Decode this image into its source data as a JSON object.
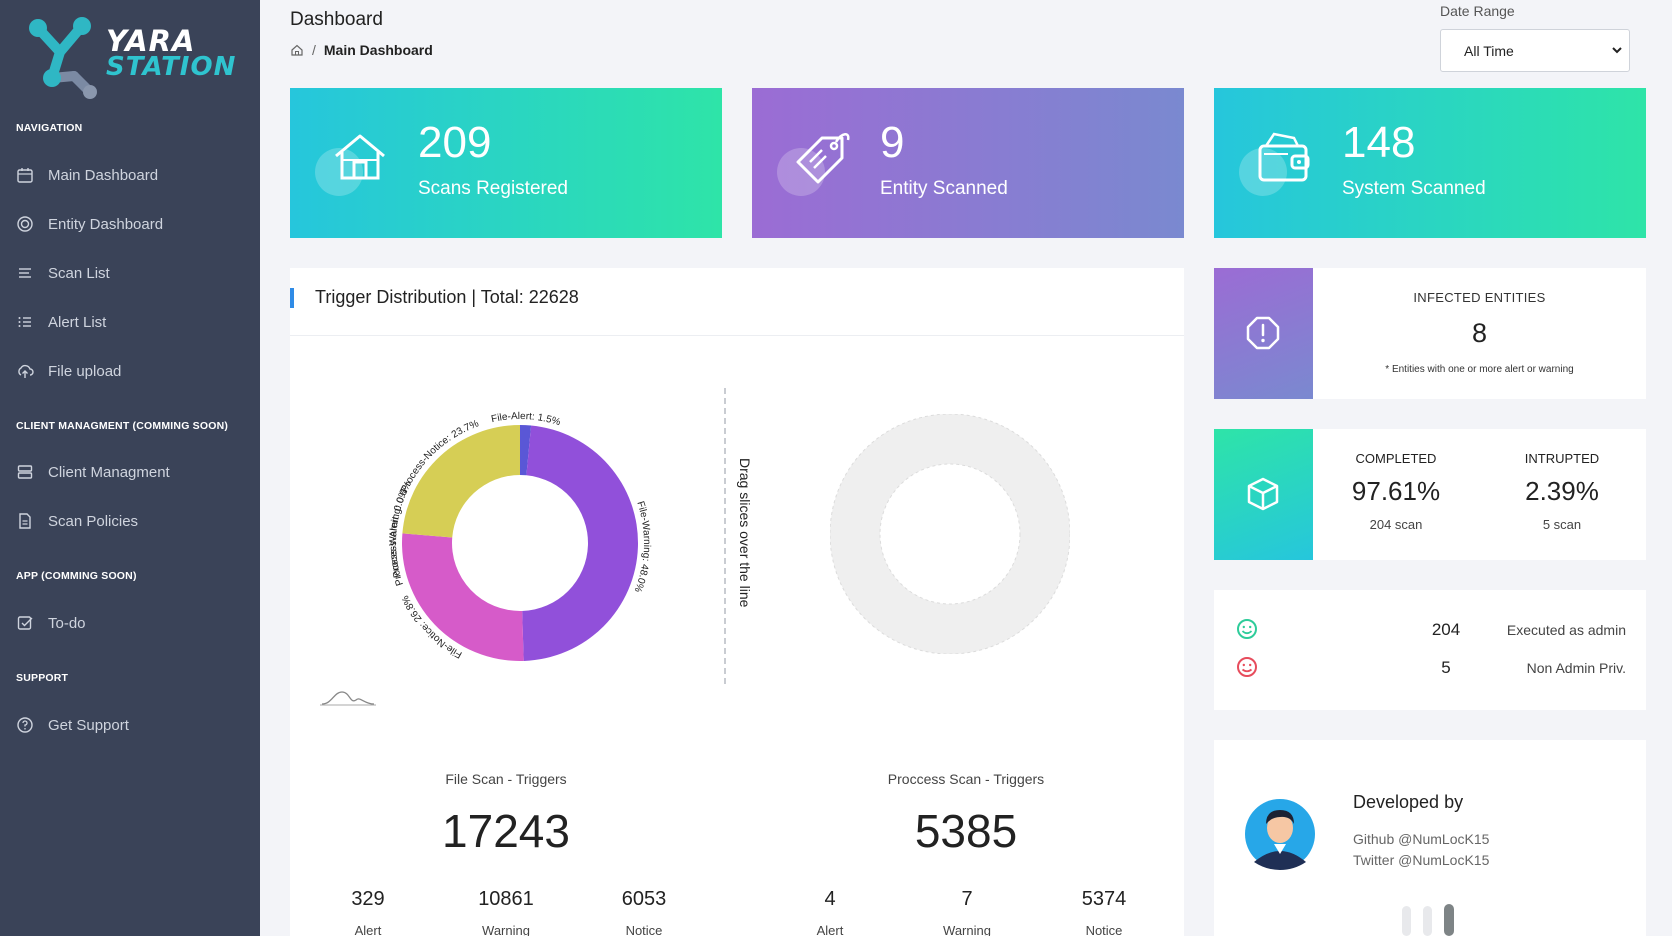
{
  "brand": {
    "line1": "YARA",
    "line2": "STATION"
  },
  "nav": {
    "sections": {
      "navigation": "NAVIGATION",
      "client": "CLIENT MANAGMENT (COMMING SOON)",
      "app": "APP (COMMING SOON)",
      "support": "SUPPORT"
    },
    "items": [
      {
        "label": "Main Dashboard",
        "icon": "calendar-icon"
      },
      {
        "label": "Entity Dashboard",
        "icon": "target-icon"
      },
      {
        "label": "Scan List",
        "icon": "list-lines-icon"
      },
      {
        "label": "Alert List",
        "icon": "bullet-list-icon"
      },
      {
        "label": "File upload",
        "icon": "cloud-upload-icon"
      },
      {
        "label": "Client Managment",
        "icon": "server-icon"
      },
      {
        "label": "Scan Policies",
        "icon": "document-icon"
      },
      {
        "label": "To-do",
        "icon": "checkbox-icon"
      },
      {
        "label": "Get Support",
        "icon": "help-circle-icon"
      }
    ]
  },
  "header": {
    "title": "Dashboard",
    "breadcrumb_sep": "/",
    "breadcrumb_current": "Main Dashboard",
    "date_range_label": "Date Range",
    "date_range_value": "All Time"
  },
  "stats": [
    {
      "value": "209",
      "label": "Scans Registered",
      "icon": "house-icon"
    },
    {
      "value": "9",
      "label": "Entity Scanned",
      "icon": "tag-icon"
    },
    {
      "value": "148",
      "label": "System Scanned",
      "icon": "wallet-icon"
    }
  ],
  "trigger": {
    "title": "Trigger Distribution | Total: 22628",
    "drag_hint": "Drag slices over the line",
    "file_scan_title": "File Scan - Triggers",
    "file_scan_total": "17243",
    "process_scan_title": "Proccess Scan - Triggers",
    "process_scan_total": "5385",
    "file_counts": [
      {
        "value": "329",
        "label": "Alert"
      },
      {
        "value": "10861",
        "label": "Warning"
      },
      {
        "value": "6053",
        "label": "Notice"
      }
    ],
    "process_counts": [
      {
        "value": "4",
        "label": "Alert"
      },
      {
        "value": "7",
        "label": "Warning"
      },
      {
        "value": "5374",
        "label": "Notice"
      }
    ]
  },
  "chart_data": {
    "type": "pie",
    "donut": true,
    "categories": [
      "File-Alert",
      "File-Warning",
      "File-Notice",
      "Process-Alert",
      "Process-Warning",
      "Process-Notice"
    ],
    "values": [
      1.5,
      48.0,
      26.8,
      0.0,
      0.0,
      23.7
    ],
    "slice_labels": [
      "File-Alert: 1.5%",
      "File-Warning: 48.0%",
      "File-Notice: 26.8%",
      "Process-Alert: 0.0%",
      "Process-Warning: 0.0%",
      "Process-Notice: 23.7%"
    ],
    "colors": [
      "#5a57d6",
      "#9150da",
      "#d65bc9",
      "#7ab8c8",
      "#b6c26e",
      "#d6ce55"
    ]
  },
  "infected": {
    "title": "INFECTED ENTITIES",
    "value": "8",
    "note": "* Entities with one or more alert or warning"
  },
  "completion": {
    "completed_title": "COMPLETED",
    "completed_value": "97.61%",
    "completed_sub": "204 scan",
    "interrupted_title": "INTRUPTED",
    "interrupted_value": "2.39%",
    "interrupted_sub": "5 scan"
  },
  "privileges": [
    {
      "value": "204",
      "label": "Executed as admin",
      "color": "#2ecc9a"
    },
    {
      "value": "5",
      "label": "Non Admin Priv.",
      "color": "#e74c5c"
    }
  ],
  "developer": {
    "title": "Developed by",
    "github": "Github @NumLocK15",
    "twitter": "Twitter @NumLocK15"
  }
}
